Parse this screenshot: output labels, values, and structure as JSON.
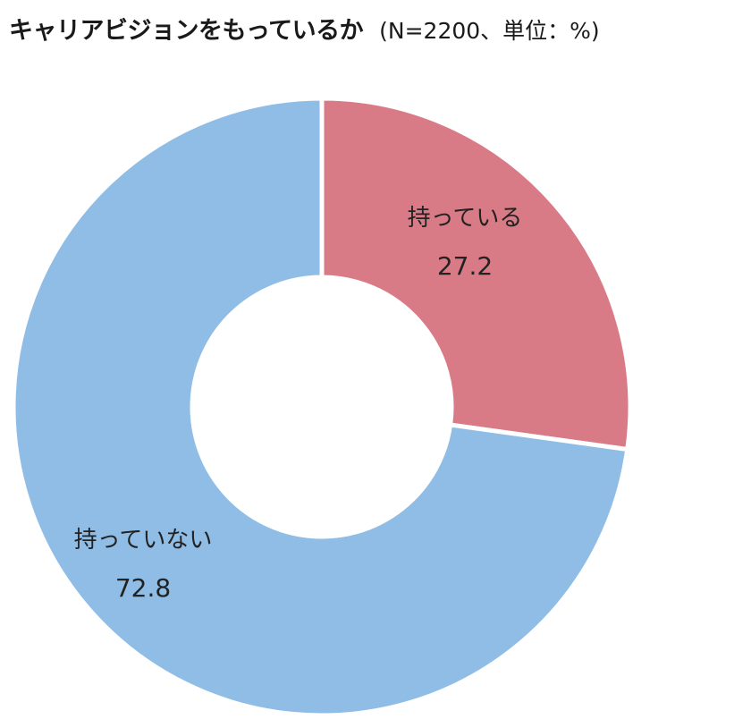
{
  "header": {
    "title": "キャリアビジョンをもっているか",
    "subtitle": "(N=2200、単位：%)"
  },
  "chart_data": {
    "type": "pie",
    "donut": true,
    "title": "キャリアビジョンをもっているか",
    "subtitle": "(N=2200、単位：%)",
    "n": 2200,
    "unit": "%",
    "slices": [
      {
        "label": "持っている",
        "value": 27.2,
        "value_text": "27.2",
        "color": "#d97b87"
      },
      {
        "label": "持っていない",
        "value": 72.8,
        "value_text": "72.8",
        "color": "#8fbde6"
      }
    ],
    "legend": "none"
  }
}
